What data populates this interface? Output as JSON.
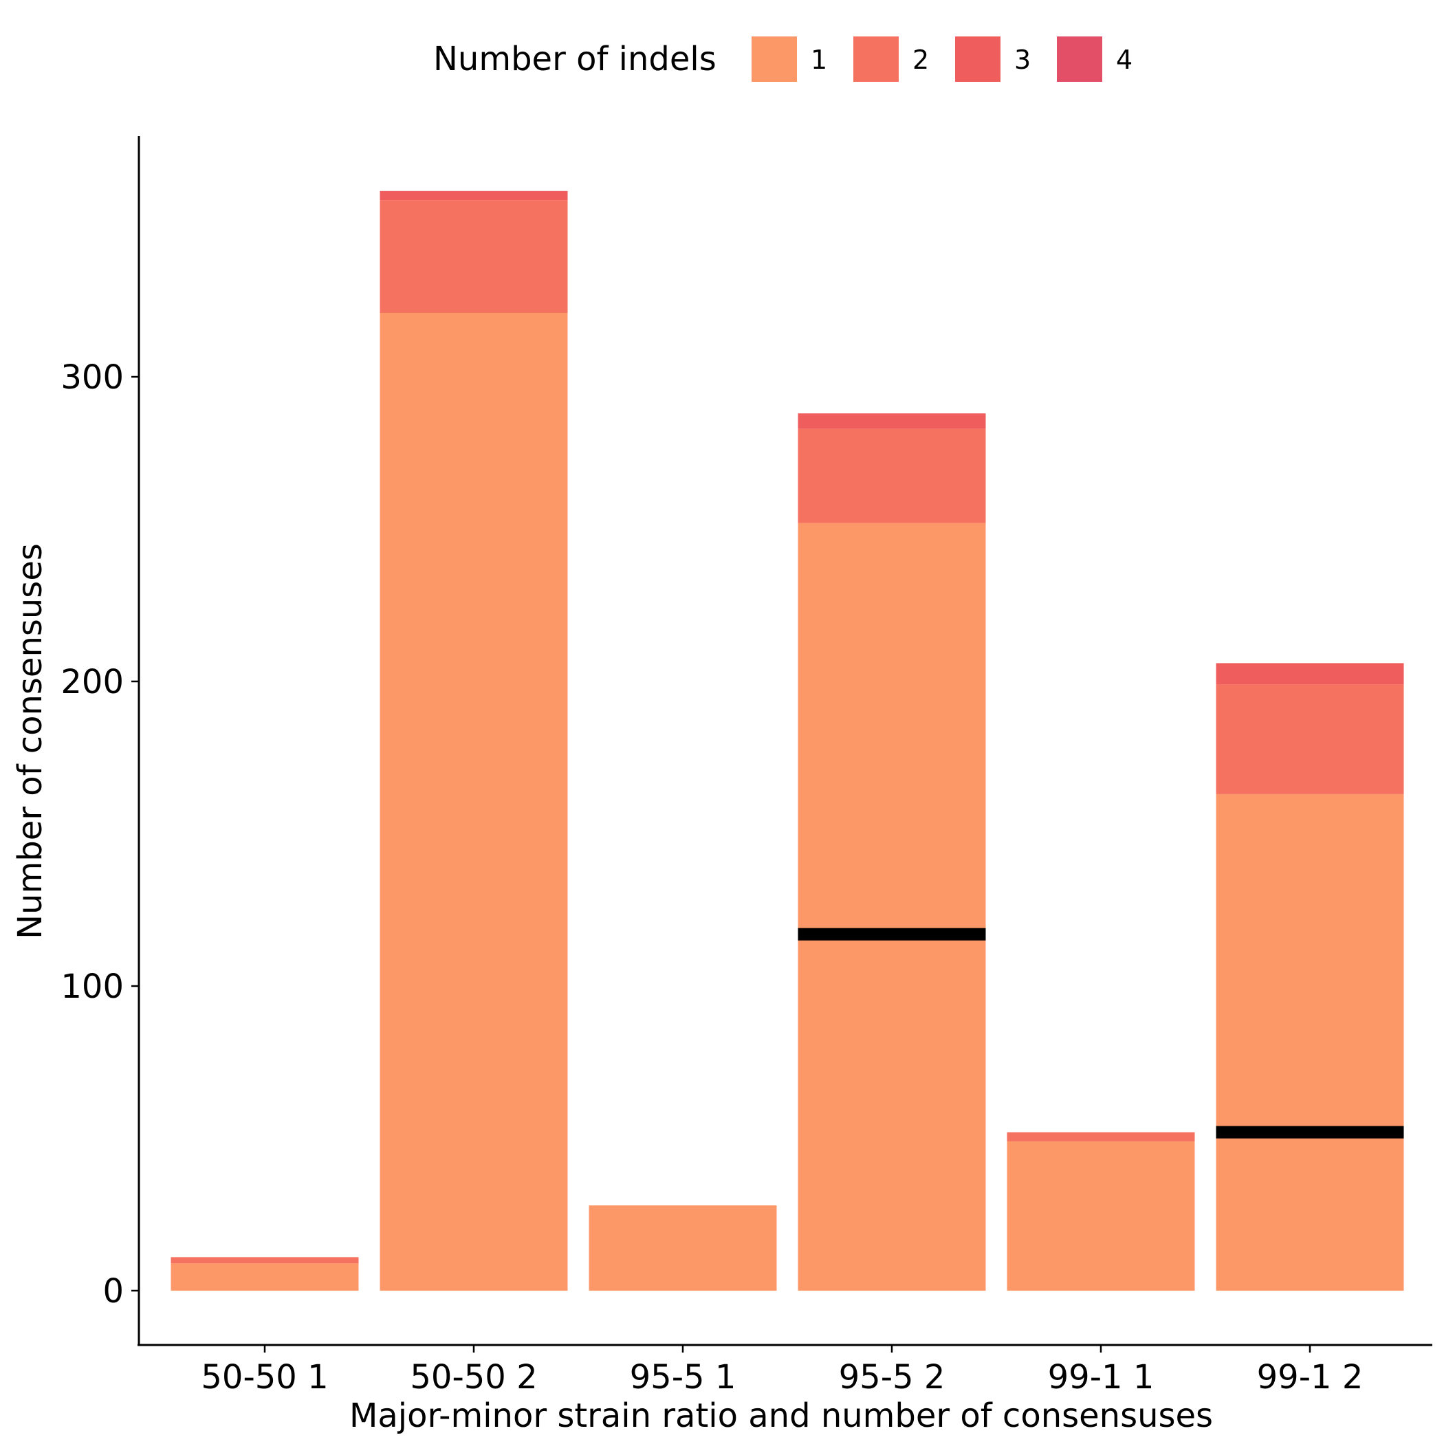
{
  "chart_data": {
    "type": "bar",
    "stacked": true,
    "categories": [
      "50-50 1",
      "50-50 2",
      "95-5 1",
      "95-5 2",
      "99-1 1",
      "99-1 2"
    ],
    "series": [
      {
        "name": "1",
        "color": "#FC9768",
        "values": [
          9,
          321,
          28,
          252,
          49,
          163
        ]
      },
      {
        "name": "2",
        "color": "#F67260",
        "values": [
          2,
          37,
          0,
          31,
          3,
          36
        ]
      },
      {
        "name": "3",
        "color": "#EF5D5D",
        "values": [
          0,
          3,
          0,
          5,
          0,
          7
        ]
      },
      {
        "name": "4",
        "color": "#E34F67",
        "values": [
          0,
          0,
          0,
          0,
          0,
          0
        ]
      }
    ],
    "reference_lines": [
      {
        "category": "95-5 2",
        "value": 117
      },
      {
        "category": "99-1 2",
        "value": 52
      }
    ],
    "xlabel": "Major-minor strain ratio and number of consensuses",
    "ylabel": "Number of consensuses",
    "ylim": [
      -18,
      379
    ],
    "yticks": [
      0,
      100,
      200,
      300
    ],
    "legend": {
      "title": "Number of indels",
      "position": "top"
    },
    "grid": false
  }
}
